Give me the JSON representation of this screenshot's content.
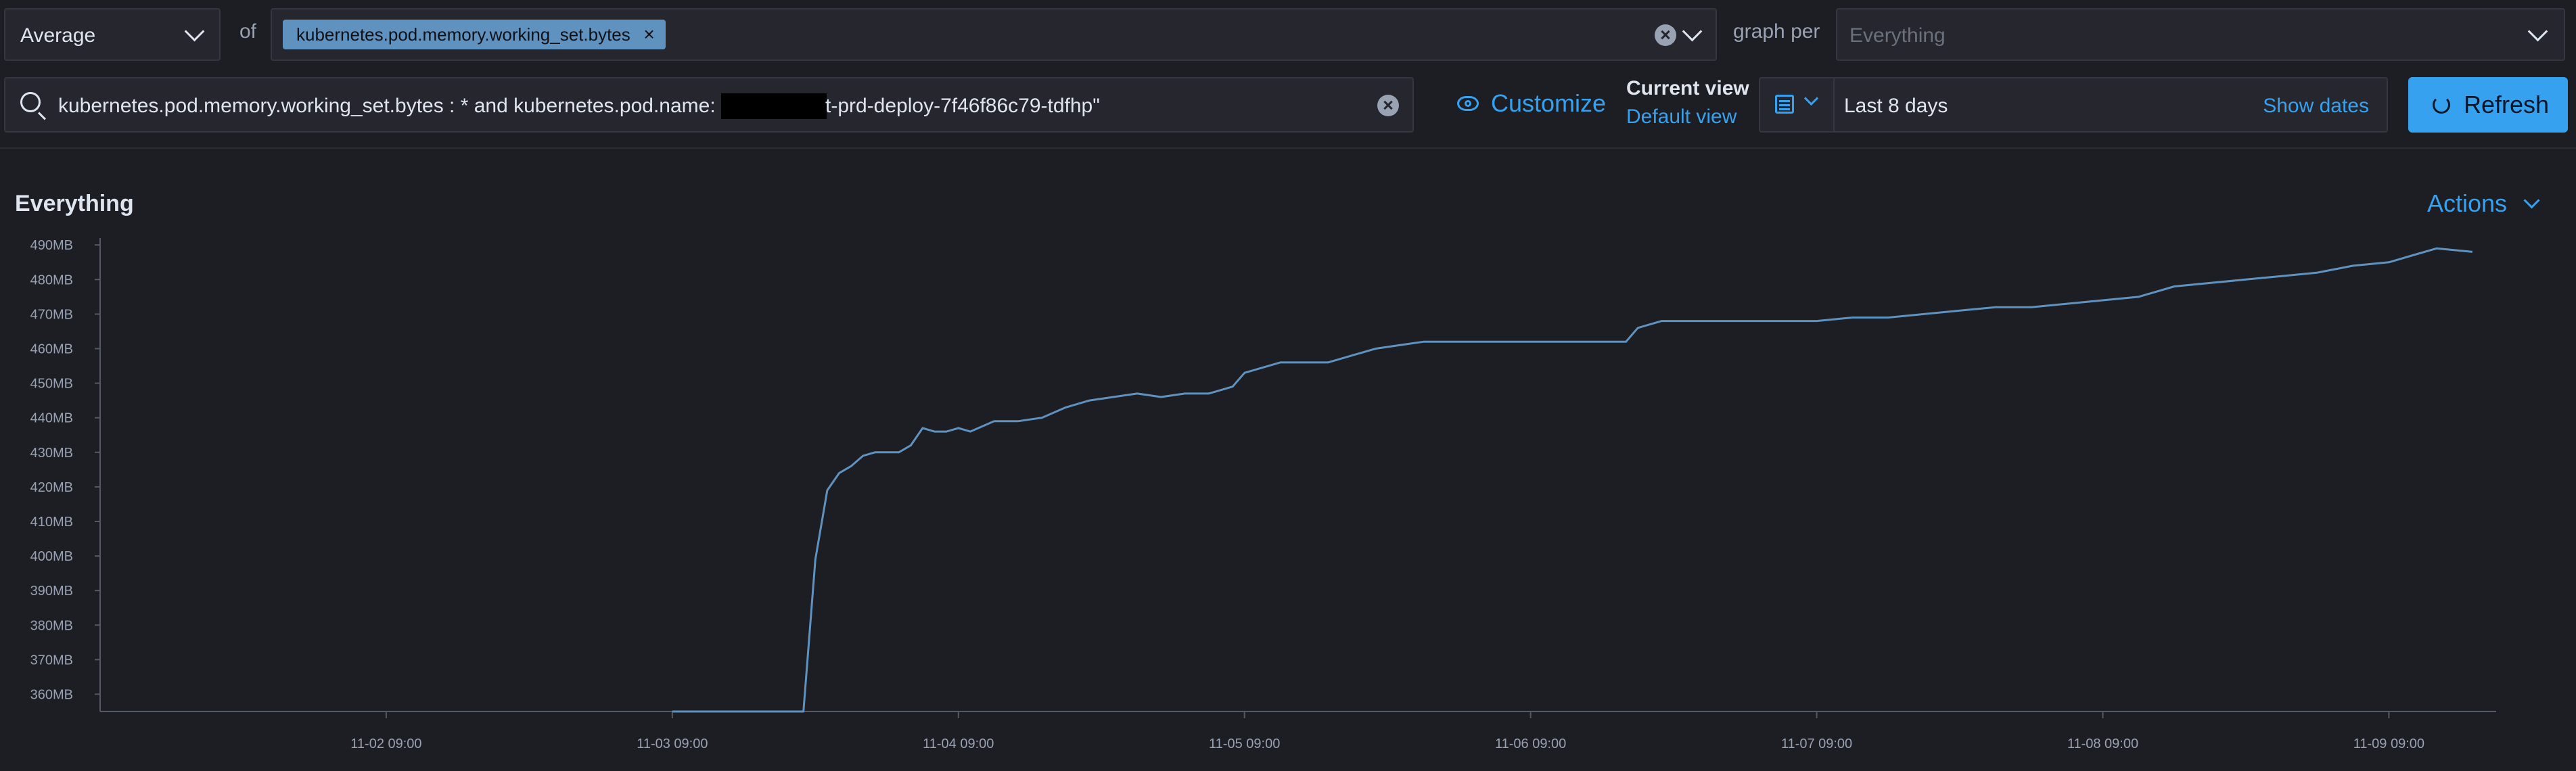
{
  "aggregation": {
    "selected": "Average"
  },
  "of_label": "of",
  "metrics": {
    "selected": [
      "kubernetes.pod.memory.working_set.bytes"
    ]
  },
  "graph_per": {
    "label": "graph per",
    "placeholder": "Everything"
  },
  "search": {
    "query_part1": "kubernetes.pod.memory.working_set.bytes : * and kubernetes.pod.name: '",
    "query_part2": "t-prd-deploy-7f46f86c79-tdfhp\""
  },
  "customize_label": "Customize",
  "views": {
    "current_title": "Current view",
    "default_link": "Default view"
  },
  "date_picker": {
    "range": "Last 8 days",
    "show_dates_label": "Show dates"
  },
  "refresh_label": "Refresh",
  "panel": {
    "title": "Everything",
    "actions_label": "Actions"
  },
  "colors": {
    "accent": "#36a2ef",
    "series": "#6092c0",
    "background": "#1d1e24"
  },
  "icons": [
    "chevron-down-icon",
    "clear-icon",
    "search-icon",
    "eye-icon",
    "calendar-icon",
    "refresh-icon"
  ],
  "chart_data": {
    "type": "line",
    "title": "",
    "xlabel": "",
    "ylabel": "",
    "ylim": [
      355,
      492
    ],
    "xlim": [
      "2023-11-01 09:00",
      "2023-11-09 18:00"
    ],
    "y_ticks": [
      "360MB",
      "370MB",
      "380MB",
      "390MB",
      "400MB",
      "410MB",
      "420MB",
      "430MB",
      "440MB",
      "450MB",
      "460MB",
      "470MB",
      "480MB",
      "490MB"
    ],
    "x_ticks": [
      "11-02 09:00",
      "11-03 09:00",
      "11-04 09:00",
      "11-05 09:00",
      "11-06 09:00",
      "11-07 09:00",
      "11-08 09:00",
      "11-09 09:00"
    ],
    "grid": false,
    "series": [
      {
        "x": [
          "2023-11-03 09:00",
          "2023-11-03 20:00",
          "2023-11-03 21:00",
          "2023-11-03 22:00",
          "2023-11-03 23:00",
          "2023-11-04 00:00",
          "2023-11-04 01:00",
          "2023-11-04 02:00",
          "2023-11-04 03:00",
          "2023-11-04 04:00",
          "2023-11-04 05:00",
          "2023-11-04 06:00",
          "2023-11-04 07:00",
          "2023-11-04 08:00",
          "2023-11-04 09:00",
          "2023-11-04 10:00",
          "2023-11-04 12:00",
          "2023-11-04 14:00",
          "2023-11-04 16:00",
          "2023-11-04 18:00",
          "2023-11-04 20:00",
          "2023-11-04 22:00",
          "2023-11-05 00:00",
          "2023-11-05 02:00",
          "2023-11-05 04:00",
          "2023-11-05 06:00",
          "2023-11-05 08:00",
          "2023-11-05 09:00",
          "2023-11-05 10:00",
          "2023-11-05 12:00",
          "2023-11-05 14:00",
          "2023-11-05 16:00",
          "2023-11-05 18:00",
          "2023-11-05 20:00",
          "2023-11-05 22:00",
          "2023-11-06 00:00",
          "2023-11-06 03:00",
          "2023-11-06 06:00",
          "2023-11-06 09:00",
          "2023-11-06 12:00",
          "2023-11-06 15:00",
          "2023-11-06 17:00",
          "2023-11-06 18:00",
          "2023-11-06 20:00",
          "2023-11-06 23:00",
          "2023-11-07 02:00",
          "2023-11-07 05:00",
          "2023-11-07 09:00",
          "2023-11-07 12:00",
          "2023-11-07 15:00",
          "2023-11-07 18:00",
          "2023-11-07 21:00",
          "2023-11-08 00:00",
          "2023-11-08 03:00",
          "2023-11-08 06:00",
          "2023-11-08 09:00",
          "2023-11-08 12:00",
          "2023-11-08 15:00",
          "2023-11-08 18:00",
          "2023-11-08 21:00",
          "2023-11-09 00:00",
          "2023-11-09 03:00",
          "2023-11-09 06:00",
          "2023-11-09 09:00",
          "2023-11-09 11:00",
          "2023-11-09 13:00",
          "2023-11-09 16:00"
        ],
        "y": [
          355,
          355,
          399,
          419,
          424,
          426,
          429,
          430,
          430,
          430,
          432,
          437,
          436,
          436,
          437,
          436,
          439,
          439,
          440,
          443,
          445,
          446,
          447,
          446,
          447,
          447,
          449,
          453,
          454,
          456,
          456,
          456,
          458,
          460,
          461,
          462,
          462,
          462,
          462,
          462,
          462,
          462,
          466,
          468,
          468,
          468,
          468,
          468,
          469,
          469,
          470,
          471,
          472,
          472,
          473,
          474,
          475,
          478,
          479,
          480,
          481,
          482,
          484,
          485,
          487,
          489,
          488
        ]
      }
    ]
  }
}
